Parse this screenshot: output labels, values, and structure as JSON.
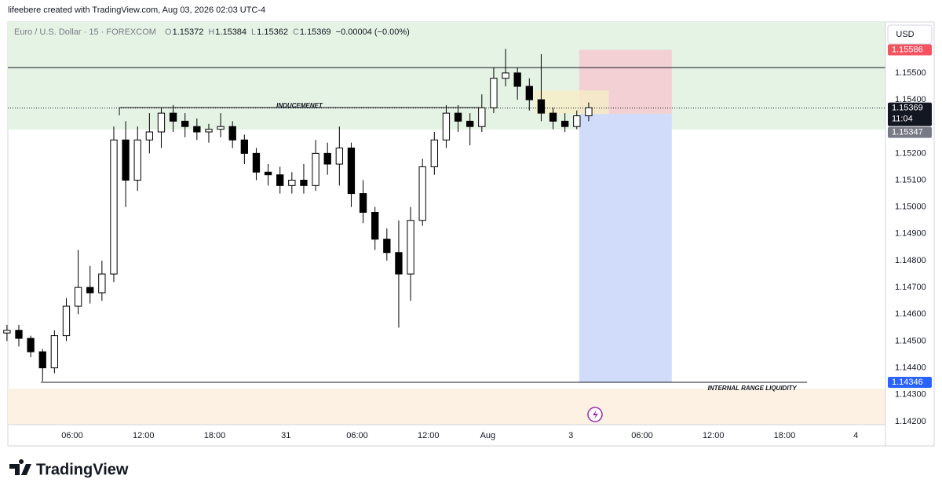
{
  "attribution": "lifeebere created with TradingView.com, Aug 03, 2026 02:03 UTC-4",
  "footer": {
    "brand": "TradingView"
  },
  "chart_data": {
    "type": "candlestick",
    "currency": "USD",
    "header": {
      "symbol": "Euro / U.S. Dollar · 15 · FOREXCOM",
      "fields": [
        {
          "label": "O",
          "value": 1.15372
        },
        {
          "label": "H",
          "value": 1.15384
        },
        {
          "label": "L",
          "value": 1.15362
        },
        {
          "label": "C",
          "value": 1.15369
        }
      ],
      "change": "−0.00004 (−0.00%)"
    },
    "xlim": [
      0.575,
      74.5
    ],
    "ylim": [
      1.14188,
      1.1569
    ],
    "xticks": [
      {
        "value": 6,
        "label": "06:00"
      },
      {
        "value": 12,
        "label": "12:00"
      },
      {
        "value": 18,
        "label": "18:00"
      },
      {
        "value": 24,
        "label": "31"
      },
      {
        "value": 30,
        "label": "06:00"
      },
      {
        "value": 36,
        "label": "12:00"
      },
      {
        "value": 41,
        "label": "Aug"
      },
      {
        "value": 48,
        "label": "3"
      },
      {
        "value": 54,
        "label": "06:00"
      },
      {
        "value": 60,
        "label": "12:00"
      },
      {
        "value": 66,
        "label": "18:00"
      },
      {
        "value": 72,
        "label": "4"
      }
    ],
    "yticks": [
      {
        "value": 1.155,
        "label": "1.15500"
      },
      {
        "value": 1.154,
        "label": "1.15400"
      },
      {
        "value": 1.152,
        "label": "1.15200"
      },
      {
        "value": 1.151,
        "label": "1.15100"
      },
      {
        "value": 1.15,
        "label": "1.15000"
      },
      {
        "value": 1.149,
        "label": "1.14900"
      },
      {
        "value": 1.148,
        "label": "1.14800"
      },
      {
        "value": 1.147,
        "label": "1.14700"
      },
      {
        "value": 1.146,
        "label": "1.14600"
      },
      {
        "value": 1.145,
        "label": "1.14500"
      },
      {
        "value": 1.144,
        "label": "1.14400"
      },
      {
        "value": 1.143,
        "label": "1.14300"
      },
      {
        "value": 1.142,
        "label": "1.14200"
      }
    ],
    "up_color": "#ffffff",
    "down_color": "#000000",
    "x": [
      0.5,
      1.5,
      2.5,
      3.5,
      4.5,
      5.5,
      6.5,
      7.5,
      8.5,
      9.5,
      10.5,
      11.5,
      12.5,
      13.5,
      14.5,
      15.5,
      16.5,
      17.5,
      18.5,
      19.5,
      20.5,
      21.5,
      22.5,
      23.5,
      24.5,
      25.5,
      26.5,
      27.5,
      28.5,
      29.5,
      30.5,
      31.5,
      32.5,
      33.5,
      34.5,
      35.5,
      36.5,
      37.5,
      38.5,
      39.5,
      40.5,
      41.5,
      42.5,
      43.5,
      44.5,
      45.5,
      46.5,
      47.5,
      48.5,
      49.5
    ],
    "open": [
      1.1453,
      1.1454,
      1.1451,
      1.1446,
      1.144,
      1.1452,
      1.1463,
      1.147,
      1.1468,
      1.1475,
      1.1525,
      1.151,
      1.1525,
      1.1528,
      1.1535,
      1.1532,
      1.153,
      1.1528,
      1.1529,
      1.153,
      1.1525,
      1.152,
      1.1513,
      1.1512,
      1.1508,
      1.151,
      1.1508,
      1.152,
      1.1516,
      1.1522,
      1.1505,
      1.1498,
      1.1488,
      1.1483,
      1.1475,
      1.1495,
      1.1515,
      1.1525,
      1.1535,
      1.1532,
      1.153,
      1.1537,
      1.1548,
      1.155,
      1.1545,
      1.154,
      1.1535,
      1.1532,
      1.153,
      1.1534
    ],
    "high": [
      1.1456,
      1.1456,
      1.1452,
      1.1447,
      1.1454,
      1.1466,
      1.1484,
      1.1478,
      1.148,
      1.153,
      1.1532,
      1.153,
      1.1535,
      1.1537,
      1.1538,
      1.1535,
      1.1533,
      1.1531,
      1.1535,
      1.1532,
      1.1527,
      1.1522,
      1.1516,
      1.1515,
      1.1513,
      1.1516,
      1.1525,
      1.1524,
      1.153,
      1.1524,
      1.151,
      1.15,
      1.1492,
      1.1495,
      1.15,
      1.1518,
      1.1528,
      1.1538,
      1.1538,
      1.1535,
      1.1542,
      1.1552,
      1.1559,
      1.1552,
      1.1548,
      1.1557,
      1.1537,
      1.1535,
      1.1536,
      1.1539
    ],
    "low": [
      1.145,
      1.1448,
      1.1444,
      1.1435,
      1.1438,
      1.145,
      1.146,
      1.1464,
      1.1465,
      1.1472,
      1.15,
      1.1506,
      1.152,
      1.1522,
      1.1528,
      1.1526,
      1.1525,
      1.1524,
      1.1526,
      1.1522,
      1.1516,
      1.151,
      1.1508,
      1.1505,
      1.1505,
      1.1505,
      1.1506,
      1.1512,
      1.1508,
      1.15,
      1.1494,
      1.1484,
      1.148,
      1.1455,
      1.1465,
      1.1493,
      1.1512,
      1.1522,
      1.1528,
      1.1523,
      1.1528,
      1.1535,
      1.1545,
      1.154,
      1.1536,
      1.1532,
      1.1529,
      1.1528,
      1.1529,
      1.1532
    ],
    "close": [
      1.1454,
      1.1451,
      1.1446,
      1.144,
      1.1452,
      1.1463,
      1.147,
      1.1468,
      1.1475,
      1.1525,
      1.151,
      1.1525,
      1.1528,
      1.1535,
      1.1532,
      1.153,
      1.1528,
      1.1529,
      1.153,
      1.1525,
      1.152,
      1.1513,
      1.1512,
      1.1508,
      1.151,
      1.1508,
      1.152,
      1.1516,
      1.1522,
      1.1505,
      1.1498,
      1.1488,
      1.1483,
      1.1475,
      1.1495,
      1.1515,
      1.1525,
      1.1535,
      1.1532,
      1.153,
      1.1537,
      1.1548,
      1.155,
      1.1545,
      1.154,
      1.1535,
      1.1532,
      1.153,
      1.1534,
      1.1537
    ],
    "last_price": 1.15369,
    "countdown": "11:04",
    "zones": [
      {
        "low": 1.15289,
        "high": 1.1569,
        "color": "#e5f3e4"
      },
      {
        "low": 1.14188,
        "high": 1.14323,
        "color": "#fdf1e3"
      }
    ],
    "levels": [
      {
        "price": 1.1552,
        "from": 0.575,
        "to": 74.5
      },
      {
        "label": "INDUCEMENET",
        "price": 1.15371,
        "from": 9.97,
        "to": 40.3
      },
      {
        "label": "INTERNAL RANGE LIQUIDITY",
        "price": 1.14346,
        "from": 3.35,
        "to": 67.9
      }
    ],
    "highlight": {
      "low": 1.15347,
      "high": 1.15435,
      "from": 44.9,
      "to": 51.2,
      "color": "#f6ecc8"
    },
    "position": {
      "entry": 1.15347,
      "stop": 1.15586,
      "target": 1.14346,
      "from": 48.7,
      "to": 56.5,
      "stop_color": "#f2d0d3",
      "target_color": "#d0dcf9"
    }
  }
}
